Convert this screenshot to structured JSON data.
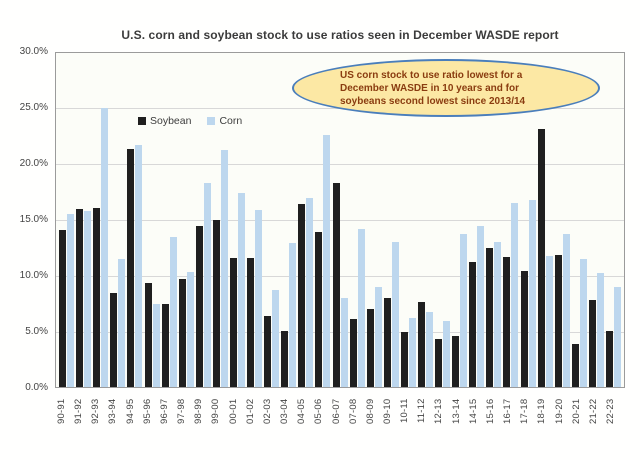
{
  "figure": {
    "legend": {
      "soybean_label": "Soybean",
      "corn_label": "Corn"
    },
    "annotation": {
      "lines": [
        "US corn stock to use ratio lowest for a",
        "December WASDE in 10 years and for",
        "soybeans second lowest since 2013/14"
      ],
      "fill_color": "#fce8a4",
      "border_color": "#4a7ebb",
      "text_color": "#8a3c10"
    },
    "colors": {
      "soybean_bar": "#1f1f1f",
      "corn_bar": "#bdd7ee",
      "gridline": "#d8d8d8",
      "plot_border": "#9b9b9b"
    }
  },
  "chart_data": {
    "type": "bar",
    "title": "U.S. corn and soybean stock to use ratios seen in December WASDE report",
    "xlabel": "",
    "ylabel": "",
    "ylim": [
      0,
      30
    ],
    "ytick_labels": [
      "0.0%",
      "5.0%",
      "10.0%",
      "15.0%",
      "20.0%",
      "25.0%",
      "30.0%"
    ],
    "grid": true,
    "legend_position": "inside-top-left",
    "categories": [
      "90-91",
      "91-92",
      "92-93",
      "93-94",
      "94-95",
      "95-96",
      "96-97",
      "97-98",
      "98-99",
      "99-00",
      "00-01",
      "01-02",
      "02-03",
      "03-04",
      "04-05",
      "05-06",
      "06-07",
      "07-08",
      "08-09",
      "09-10",
      "10-11",
      "11-12",
      "12-13",
      "13-14",
      "14-15",
      "15-16",
      "16-17",
      "17-18",
      "18-19",
      "19-20",
      "20-21",
      "21-22",
      "22-23"
    ],
    "series": [
      {
        "name": "Soybean",
        "color": "#1f1f1f",
        "values": [
          14.1,
          16.0,
          16.1,
          8.4,
          21.4,
          9.3,
          7.5,
          9.7,
          14.5,
          15.0,
          11.6,
          11.6,
          6.4,
          5.0,
          16.4,
          13.9,
          18.3,
          6.1,
          7.0,
          8.0,
          4.9,
          7.6,
          4.3,
          4.6,
          11.2,
          12.5,
          11.7,
          10.4,
          23.2,
          11.9,
          3.9,
          7.8,
          5.0
        ]
      },
      {
        "name": "Corn",
        "color": "#bdd7ee",
        "values": [
          15.5,
          15.8,
          25.1,
          11.5,
          21.7,
          7.5,
          13.5,
          10.3,
          18.3,
          21.3,
          17.4,
          15.9,
          8.7,
          12.9,
          17.0,
          22.6,
          8.0,
          14.2,
          9.0,
          13.0,
          6.2,
          6.7,
          5.9,
          13.7,
          14.5,
          13.0,
          16.5,
          16.8,
          11.8,
          13.7,
          11.5,
          10.2,
          9.0
        ]
      }
    ]
  }
}
